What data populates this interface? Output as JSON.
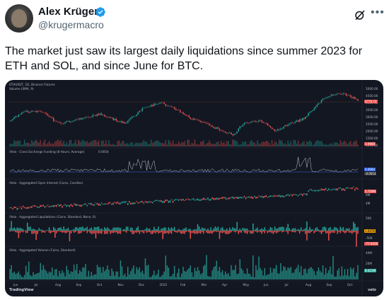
{
  "author": {
    "name": "Alex Krüger",
    "handle": "@krugermacro",
    "verified": true,
    "verified_color": "#1d9bf0"
  },
  "tweet": {
    "text": "The market just saw its largest daily liquidations since summer 2023 for ETH and SOL, and since June for BTC."
  },
  "icons": {
    "grok": "grok-icon",
    "more": "more-icon"
  },
  "chart": {
    "panes": {
      "price": {
        "label": "ETHUSDT, 1D, Binance Futures",
        "sub_label": "Volume (SMA, 9)"
      },
      "funding": {
        "label": "/Velo - Cross Exchange Funding (8 Hours, Average)",
        "value": "0.0054"
      },
      "oi": {
        "label": "/Velo - Aggregated Open Interest (Coins, Candles)"
      },
      "liq": {
        "label": "/Velo - Aggregated Liquidations (Coins, Standard, None, 0)"
      },
      "vol": {
        "label": "/Velo - Aggregated Volume (Coins, Standard)"
      }
    },
    "price_axis": [
      "5000.00",
      "4500.00",
      "4000.00",
      "3500.00",
      "3000.00",
      "2500.00",
      "2000.00",
      "1500.00",
      "1000.00"
    ],
    "price_tag": "4770.72",
    "price_tag2": "3.9960",
    "funding_tags": [
      "0.0094",
      "-0.0014"
    ],
    "oi_axis": [
      "6M",
      "4M"
    ],
    "oi_tag": "5.759M",
    "liq_axis": [
      "50K",
      "-50K"
    ],
    "liq_tags": [
      "1.647K",
      "-77.945K"
    ],
    "vol_axis": [
      "40M",
      "20M"
    ],
    "vol_tag": "8.421M",
    "months": [
      "Jun",
      "Jul",
      "Aug",
      "Sep",
      "Oct",
      "Nov",
      "Dec",
      "2025",
      "Feb",
      "Mar",
      "Apr",
      "May",
      "Jun",
      "Jul",
      "Aug",
      "Sep",
      "Oct"
    ],
    "brand_left": "TradingView",
    "brand_right": "velo",
    "colors": {
      "up": "#26a69a",
      "down": "#ef5350",
      "bg": "#131722",
      "yellow": "#f0c000",
      "blue": "#4a6fd8"
    }
  }
}
